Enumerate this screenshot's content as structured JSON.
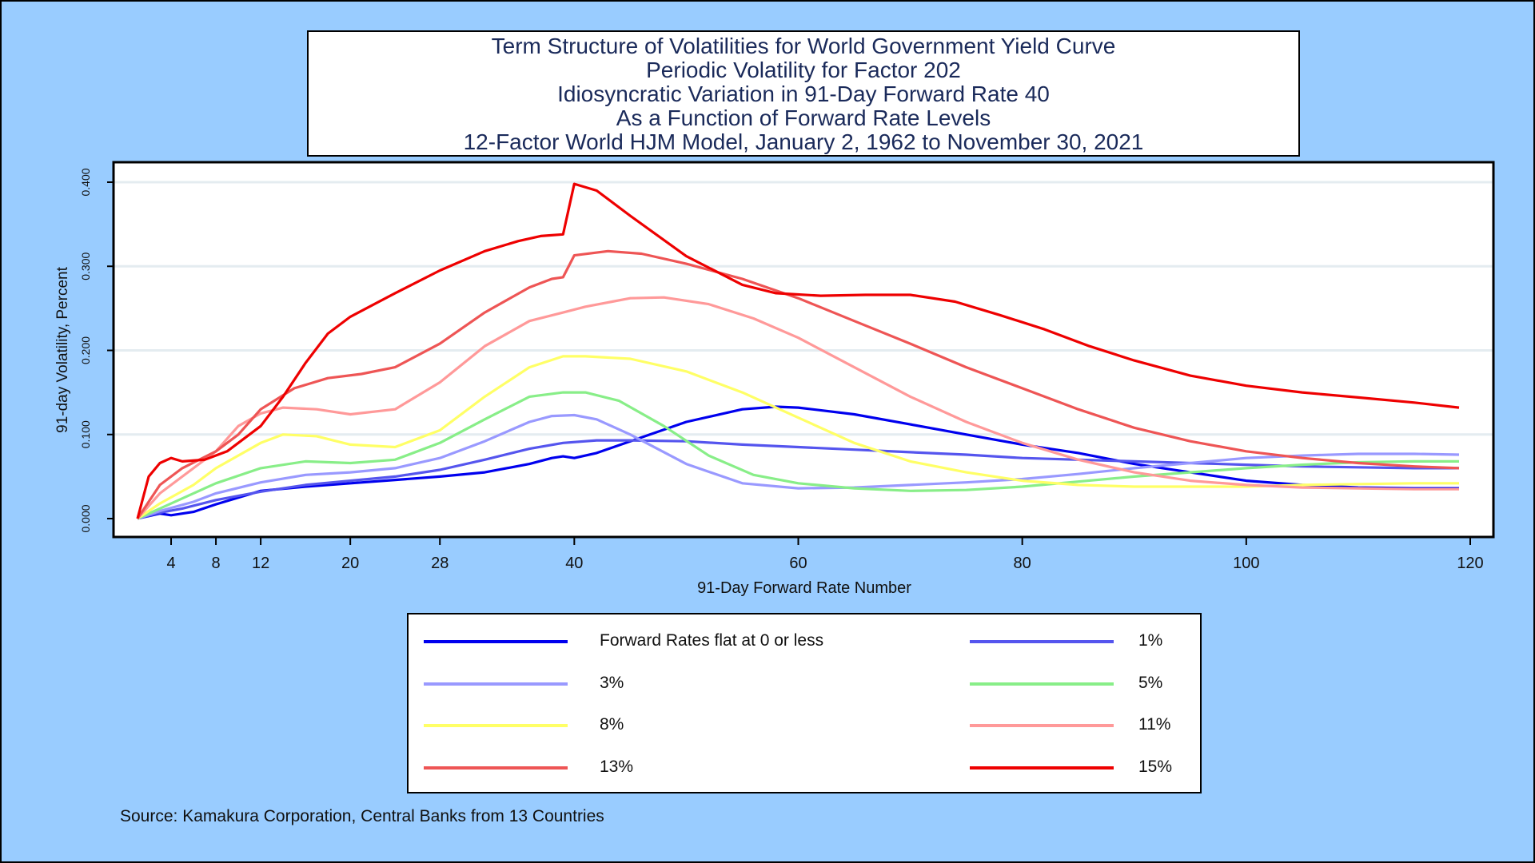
{
  "title_lines": [
    "Term Structure of Volatilities for World Government Yield Curve",
    "Periodic Volatility for Factor 202",
    "Idiosyncratic Variation in 91-Day Forward Rate 40",
    "As a Function of Forward Rate Levels",
    "12-Factor World HJM Model, January 2, 1962 to November 30, 2021"
  ],
  "source": "Source: Kamakura Corporation, Central Banks from 13 Countries",
  "chart_data": {
    "type": "line",
    "xlabel": "91-Day Forward Rate Number",
    "ylabel": "91-day Volatility, Percent",
    "xlim": [
      1,
      120
    ],
    "ylim": [
      0,
      0.4
    ],
    "x_ticks": [
      4,
      8,
      12,
      20,
      28,
      40,
      60,
      80,
      100,
      120
    ],
    "y_ticks": [
      "0.000",
      "0.100",
      "0.200",
      "0.300",
      "0.400"
    ],
    "grid": "horizontal",
    "series": [
      {
        "name": "Forward Rates flat at 0 or less",
        "color": "#0000ee",
        "points": [
          [
            1,
            0
          ],
          [
            3,
            0.006
          ],
          [
            4,
            0.004
          ],
          [
            6,
            0.008
          ],
          [
            8,
            0.017
          ],
          [
            12,
            0.033
          ],
          [
            16,
            0.038
          ],
          [
            20,
            0.042
          ],
          [
            24,
            0.046
          ],
          [
            28,
            0.05
          ],
          [
            32,
            0.055
          ],
          [
            36,
            0.065
          ],
          [
            38,
            0.072
          ],
          [
            39,
            0.074
          ],
          [
            40,
            0.072
          ],
          [
            42,
            0.078
          ],
          [
            45,
            0.092
          ],
          [
            50,
            0.115
          ],
          [
            55,
            0.13
          ],
          [
            58,
            0.133
          ],
          [
            60,
            0.132
          ],
          [
            65,
            0.124
          ],
          [
            70,
            0.112
          ],
          [
            75,
            0.1
          ],
          [
            80,
            0.088
          ],
          [
            85,
            0.078
          ],
          [
            90,
            0.065
          ],
          [
            95,
            0.055
          ],
          [
            100,
            0.045
          ],
          [
            105,
            0.04
          ],
          [
            110,
            0.037
          ],
          [
            115,
            0.036
          ],
          [
            119,
            0.036
          ]
        ]
      },
      {
        "name": "1%",
        "color": "#5555ee",
        "points": [
          [
            1,
            0
          ],
          [
            3,
            0.007
          ],
          [
            5,
            0.012
          ],
          [
            8,
            0.022
          ],
          [
            12,
            0.032
          ],
          [
            16,
            0.04
          ],
          [
            20,
            0.045
          ],
          [
            24,
            0.05
          ],
          [
            28,
            0.058
          ],
          [
            32,
            0.07
          ],
          [
            36,
            0.083
          ],
          [
            39,
            0.09
          ],
          [
            42,
            0.093
          ],
          [
            45,
            0.093
          ],
          [
            50,
            0.092
          ],
          [
            55,
            0.088
          ],
          [
            60,
            0.085
          ],
          [
            65,
            0.082
          ],
          [
            70,
            0.079
          ],
          [
            75,
            0.076
          ],
          [
            80,
            0.072
          ],
          [
            85,
            0.07
          ],
          [
            90,
            0.068
          ],
          [
            95,
            0.066
          ],
          [
            100,
            0.064
          ],
          [
            105,
            0.062
          ],
          [
            110,
            0.061
          ],
          [
            115,
            0.06
          ],
          [
            119,
            0.06
          ]
        ]
      },
      {
        "name": "3%",
        "color": "#9999ff",
        "points": [
          [
            1,
            0
          ],
          [
            3,
            0.009
          ],
          [
            6,
            0.02
          ],
          [
            8,
            0.03
          ],
          [
            12,
            0.043
          ],
          [
            16,
            0.052
          ],
          [
            20,
            0.055
          ],
          [
            24,
            0.06
          ],
          [
            28,
            0.072
          ],
          [
            32,
            0.092
          ],
          [
            36,
            0.115
          ],
          [
            38,
            0.122
          ],
          [
            40,
            0.123
          ],
          [
            42,
            0.118
          ],
          [
            45,
            0.1
          ],
          [
            50,
            0.065
          ],
          [
            55,
            0.042
          ],
          [
            60,
            0.036
          ],
          [
            65,
            0.037
          ],
          [
            70,
            0.04
          ],
          [
            75,
            0.043
          ],
          [
            80,
            0.047
          ],
          [
            85,
            0.053
          ],
          [
            90,
            0.06
          ],
          [
            95,
            0.066
          ],
          [
            100,
            0.072
          ],
          [
            105,
            0.075
          ],
          [
            110,
            0.077
          ],
          [
            115,
            0.077
          ],
          [
            119,
            0.076
          ]
        ]
      },
      {
        "name": "5%",
        "color": "#88ee88",
        "points": [
          [
            1,
            0
          ],
          [
            3,
            0.012
          ],
          [
            6,
            0.03
          ],
          [
            8,
            0.042
          ],
          [
            12,
            0.06
          ],
          [
            16,
            0.068
          ],
          [
            20,
            0.066
          ],
          [
            24,
            0.07
          ],
          [
            28,
            0.09
          ],
          [
            32,
            0.118
          ],
          [
            36,
            0.145
          ],
          [
            39,
            0.15
          ],
          [
            41,
            0.15
          ],
          [
            44,
            0.14
          ],
          [
            48,
            0.11
          ],
          [
            52,
            0.075
          ],
          [
            56,
            0.052
          ],
          [
            60,
            0.042
          ],
          [
            65,
            0.036
          ],
          [
            70,
            0.033
          ],
          [
            75,
            0.034
          ],
          [
            80,
            0.038
          ],
          [
            85,
            0.044
          ],
          [
            90,
            0.05
          ],
          [
            95,
            0.055
          ],
          [
            100,
            0.06
          ],
          [
            105,
            0.064
          ],
          [
            110,
            0.067
          ],
          [
            115,
            0.068
          ],
          [
            119,
            0.068
          ]
        ]
      },
      {
        "name": "8%",
        "color": "#ffff66",
        "points": [
          [
            1,
            0
          ],
          [
            3,
            0.018
          ],
          [
            6,
            0.04
          ],
          [
            8,
            0.06
          ],
          [
            12,
            0.09
          ],
          [
            14,
            0.1
          ],
          [
            17,
            0.098
          ],
          [
            20,
            0.088
          ],
          [
            24,
            0.085
          ],
          [
            28,
            0.105
          ],
          [
            32,
            0.145
          ],
          [
            36,
            0.18
          ],
          [
            39,
            0.193
          ],
          [
            41,
            0.193
          ],
          [
            45,
            0.19
          ],
          [
            50,
            0.175
          ],
          [
            55,
            0.15
          ],
          [
            60,
            0.12
          ],
          [
            65,
            0.09
          ],
          [
            70,
            0.068
          ],
          [
            75,
            0.055
          ],
          [
            80,
            0.045
          ],
          [
            85,
            0.04
          ],
          [
            90,
            0.038
          ],
          [
            95,
            0.038
          ],
          [
            100,
            0.038
          ],
          [
            105,
            0.04
          ],
          [
            110,
            0.041
          ],
          [
            115,
            0.042
          ],
          [
            119,
            0.042
          ]
        ]
      },
      {
        "name": "11%",
        "color": "#ff9999",
        "points": [
          [
            1,
            0
          ],
          [
            3,
            0.03
          ],
          [
            6,
            0.06
          ],
          [
            8,
            0.08
          ],
          [
            10,
            0.11
          ],
          [
            12,
            0.125
          ],
          [
            14,
            0.132
          ],
          [
            17,
            0.13
          ],
          [
            20,
            0.124
          ],
          [
            24,
            0.13
          ],
          [
            28,
            0.162
          ],
          [
            32,
            0.205
          ],
          [
            36,
            0.235
          ],
          [
            39,
            0.245
          ],
          [
            41,
            0.252
          ],
          [
            45,
            0.262
          ],
          [
            48,
            0.263
          ],
          [
            52,
            0.255
          ],
          [
            56,
            0.238
          ],
          [
            60,
            0.215
          ],
          [
            65,
            0.18
          ],
          [
            70,
            0.145
          ],
          [
            75,
            0.115
          ],
          [
            80,
            0.09
          ],
          [
            85,
            0.07
          ],
          [
            90,
            0.055
          ],
          [
            95,
            0.045
          ],
          [
            100,
            0.04
          ],
          [
            105,
            0.037
          ],
          [
            110,
            0.036
          ],
          [
            115,
            0.035
          ],
          [
            119,
            0.035
          ]
        ]
      },
      {
        "name": "13%",
        "color": "#ee5555",
        "points": [
          [
            1,
            0
          ],
          [
            3,
            0.04
          ],
          [
            5,
            0.06
          ],
          [
            8,
            0.08
          ],
          [
            10,
            0.1
          ],
          [
            12,
            0.13
          ],
          [
            15,
            0.155
          ],
          [
            18,
            0.167
          ],
          [
            21,
            0.172
          ],
          [
            24,
            0.18
          ],
          [
            28,
            0.208
          ],
          [
            32,
            0.245
          ],
          [
            36,
            0.275
          ],
          [
            38,
            0.285
          ],
          [
            39,
            0.287
          ],
          [
            40,
            0.313
          ],
          [
            43,
            0.318
          ],
          [
            46,
            0.315
          ],
          [
            50,
            0.303
          ],
          [
            55,
            0.285
          ],
          [
            60,
            0.262
          ],
          [
            65,
            0.235
          ],
          [
            70,
            0.208
          ],
          [
            75,
            0.18
          ],
          [
            80,
            0.155
          ],
          [
            85,
            0.13
          ],
          [
            90,
            0.108
          ],
          [
            95,
            0.092
          ],
          [
            100,
            0.08
          ],
          [
            105,
            0.072
          ],
          [
            110,
            0.066
          ],
          [
            115,
            0.062
          ],
          [
            119,
            0.06
          ]
        ]
      },
      {
        "name": "15%",
        "color": "#ee0000",
        "points": [
          [
            1,
            0
          ],
          [
            2,
            0.05
          ],
          [
            3,
            0.066
          ],
          [
            4,
            0.072
          ],
          [
            5,
            0.068
          ],
          [
            7,
            0.07
          ],
          [
            9,
            0.08
          ],
          [
            12,
            0.11
          ],
          [
            14,
            0.145
          ],
          [
            16,
            0.185
          ],
          [
            18,
            0.22
          ],
          [
            20,
            0.24
          ],
          [
            24,
            0.268
          ],
          [
            28,
            0.295
          ],
          [
            32,
            0.318
          ],
          [
            35,
            0.33
          ],
          [
            37,
            0.336
          ],
          [
            39,
            0.338
          ],
          [
            40,
            0.398
          ],
          [
            42,
            0.39
          ],
          [
            45,
            0.36
          ],
          [
            50,
            0.312
          ],
          [
            55,
            0.278
          ],
          [
            58,
            0.268
          ],
          [
            62,
            0.265
          ],
          [
            66,
            0.266
          ],
          [
            70,
            0.266
          ],
          [
            74,
            0.258
          ],
          [
            78,
            0.242
          ],
          [
            82,
            0.225
          ],
          [
            86,
            0.205
          ],
          [
            90,
            0.188
          ],
          [
            95,
            0.17
          ],
          [
            100,
            0.158
          ],
          [
            105,
            0.15
          ],
          [
            110,
            0.144
          ],
          [
            115,
            0.138
          ],
          [
            119,
            0.132
          ]
        ]
      }
    ]
  }
}
